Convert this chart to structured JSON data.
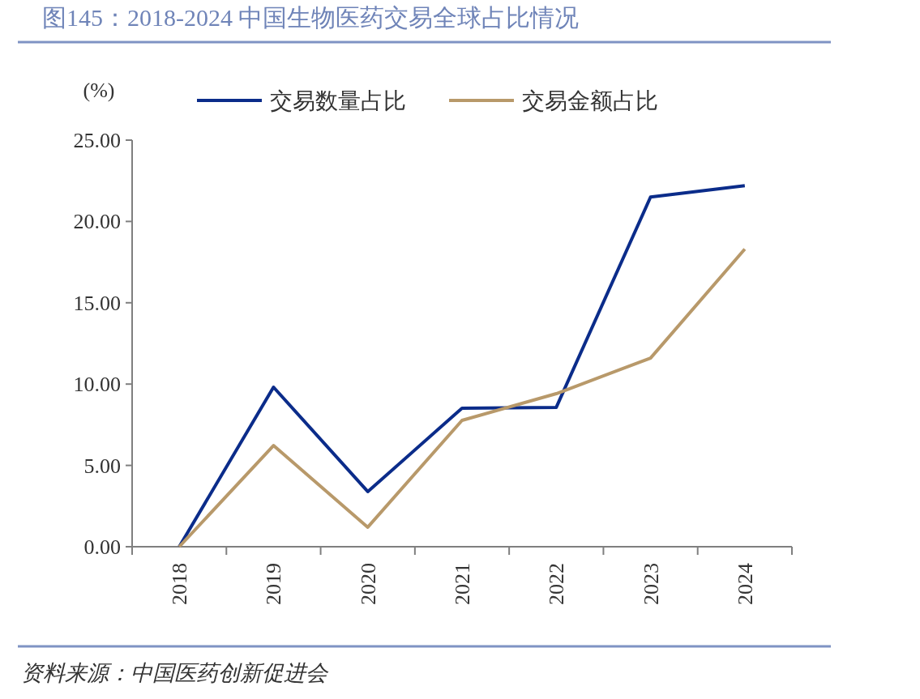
{
  "chart_data": {
    "type": "line",
    "title": "图145：2018-2024 中国生物医药交易全球占比情况",
    "ylabel": "(%)",
    "categories": [
      "2018",
      "2019",
      "2020",
      "2021",
      "2022",
      "2023",
      "2024"
    ],
    "series": [
      {
        "name": "交易数量占比",
        "color": "#0b2c8a",
        "values": [
          0,
          9.81,
          3.39,
          8.52,
          8.57,
          21.5,
          22.2
        ]
      },
      {
        "name": "交易金额占比",
        "color": "#b8996a",
        "values": [
          0,
          6.22,
          1.2,
          7.77,
          9.41,
          11.6,
          18.3
        ]
      }
    ],
    "ylim": [
      0,
      25
    ],
    "yticks": [
      {
        "value": 0,
        "label": "0.00"
      },
      {
        "value": 5,
        "label": "5.00"
      },
      {
        "value": 10,
        "label": "10.00"
      },
      {
        "value": 15,
        "label": "15.00"
      },
      {
        "value": 20,
        "label": "20.00"
      },
      {
        "value": 25,
        "label": "25.00"
      }
    ],
    "legend": "top",
    "grid": false,
    "line_style": "solid",
    "annotations": [
      "资料来源：中国医药创新促进会"
    ]
  }
}
